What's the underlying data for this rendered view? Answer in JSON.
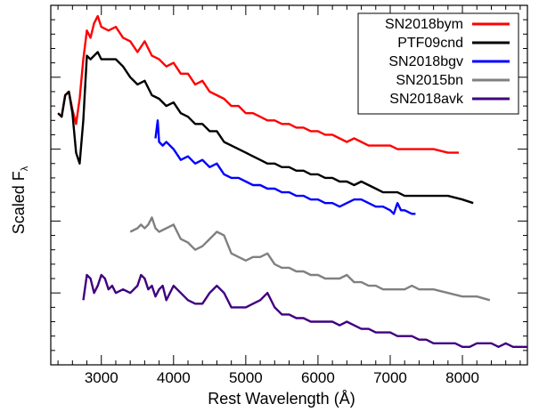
{
  "chart_data": {
    "type": "line",
    "title": "",
    "xlabel": "Rest Wavelength (Å)",
    "ylabel": "Scaled F",
    "ylabel_subscript": "λ",
    "xlim": [
      2300,
      8900
    ],
    "ylim": [
      0,
      100
    ],
    "x_ticks": [
      3000,
      4000,
      5000,
      6000,
      7000,
      8000
    ],
    "x_tick_labels": [
      "3000",
      "4000",
      "5000",
      "6000",
      "7000",
      "8000"
    ],
    "x_minor_step": 200,
    "y_major_ticks": [
      20,
      40,
      60,
      80
    ],
    "y_minor_step": 4,
    "y_tick_labels_shown": false,
    "grid": false,
    "legend_position": "top-right",
    "series": [
      {
        "name": "SN2018bym",
        "color": "#ff0000",
        "points": [
          [
            2400,
            70
          ],
          [
            2450,
            69
          ],
          [
            2500,
            75
          ],
          [
            2550,
            76
          ],
          [
            2600,
            71
          ],
          [
            2650,
            67
          ],
          [
            2700,
            74
          ],
          [
            2750,
            85
          ],
          [
            2800,
            93
          ],
          [
            2850,
            91
          ],
          [
            2900,
            95
          ],
          [
            2950,
            97
          ],
          [
            3000,
            94
          ],
          [
            3100,
            93
          ],
          [
            3200,
            94
          ],
          [
            3300,
            91
          ],
          [
            3400,
            90
          ],
          [
            3500,
            87
          ],
          [
            3600,
            90
          ],
          [
            3700,
            86
          ],
          [
            3800,
            85
          ],
          [
            3900,
            83
          ],
          [
            4000,
            84
          ],
          [
            4100,
            81
          ],
          [
            4200,
            81
          ],
          [
            4300,
            78
          ],
          [
            4400,
            79
          ],
          [
            4500,
            76
          ],
          [
            4600,
            75
          ],
          [
            4700,
            74
          ],
          [
            4800,
            72
          ],
          [
            4900,
            72
          ],
          [
            5000,
            70
          ],
          [
            5100,
            70
          ],
          [
            5200,
            69
          ],
          [
            5300,
            68
          ],
          [
            5400,
            68
          ],
          [
            5500,
            67
          ],
          [
            5600,
            67
          ],
          [
            5700,
            66
          ],
          [
            5800,
            66
          ],
          [
            5900,
            65
          ],
          [
            6000,
            65
          ],
          [
            6100,
            64
          ],
          [
            6200,
            64
          ],
          [
            6300,
            63
          ],
          [
            6400,
            62
          ],
          [
            6500,
            63
          ],
          [
            6600,
            62
          ],
          [
            6700,
            61
          ],
          [
            6800,
            61
          ],
          [
            6900,
            61
          ],
          [
            7000,
            61
          ],
          [
            7100,
            60
          ],
          [
            7200,
            60
          ],
          [
            7400,
            60
          ],
          [
            7600,
            60
          ],
          [
            7800,
            59
          ],
          [
            7950,
            59
          ]
        ]
      },
      {
        "name": "PTF09cnd",
        "color": "#000000",
        "points": [
          [
            2400,
            70
          ],
          [
            2450,
            69
          ],
          [
            2500,
            75
          ],
          [
            2550,
            76
          ],
          [
            2600,
            70
          ],
          [
            2650,
            59
          ],
          [
            2700,
            56
          ],
          [
            2750,
            68
          ],
          [
            2800,
            86
          ],
          [
            2850,
            85
          ],
          [
            2900,
            86
          ],
          [
            2950,
            87
          ],
          [
            3000,
            85
          ],
          [
            3100,
            85
          ],
          [
            3200,
            85
          ],
          [
            3300,
            83
          ],
          [
            3400,
            80
          ],
          [
            3500,
            78
          ],
          [
            3600,
            79
          ],
          [
            3700,
            75
          ],
          [
            3800,
            74
          ],
          [
            3900,
            72
          ],
          [
            4000,
            73
          ],
          [
            4100,
            70
          ],
          [
            4200,
            69
          ],
          [
            4300,
            67
          ],
          [
            4400,
            67
          ],
          [
            4500,
            65
          ],
          [
            4600,
            65
          ],
          [
            4700,
            62
          ],
          [
            4800,
            61
          ],
          [
            4900,
            60
          ],
          [
            5000,
            59
          ],
          [
            5100,
            58
          ],
          [
            5200,
            57
          ],
          [
            5300,
            56
          ],
          [
            5400,
            56
          ],
          [
            5500,
            55
          ],
          [
            5600,
            55
          ],
          [
            5700,
            54
          ],
          [
            5800,
            54
          ],
          [
            5900,
            53
          ],
          [
            6000,
            53
          ],
          [
            6100,
            52
          ],
          [
            6200,
            52
          ],
          [
            6300,
            51
          ],
          [
            6400,
            51
          ],
          [
            6500,
            50
          ],
          [
            6600,
            51
          ],
          [
            6700,
            50
          ],
          [
            6800,
            49
          ],
          [
            6900,
            48
          ],
          [
            7000,
            48
          ],
          [
            7100,
            48
          ],
          [
            7200,
            47
          ],
          [
            7400,
            47
          ],
          [
            7600,
            47
          ],
          [
            7800,
            47
          ],
          [
            8000,
            46
          ],
          [
            8150,
            45
          ]
        ]
      },
      {
        "name": "SN2018bgv",
        "color": "#0000ff",
        "points": [
          [
            3750,
            63
          ],
          [
            3780,
            68
          ],
          [
            3800,
            62
          ],
          [
            3850,
            61
          ],
          [
            3900,
            62
          ],
          [
            4000,
            60
          ],
          [
            4100,
            57
          ],
          [
            4200,
            58
          ],
          [
            4300,
            56
          ],
          [
            4400,
            57
          ],
          [
            4500,
            55
          ],
          [
            4600,
            56
          ],
          [
            4700,
            53
          ],
          [
            4800,
            52
          ],
          [
            4900,
            52
          ],
          [
            5000,
            51
          ],
          [
            5100,
            50
          ],
          [
            5200,
            50
          ],
          [
            5300,
            49
          ],
          [
            5400,
            49
          ],
          [
            5500,
            48
          ],
          [
            5600,
            48
          ],
          [
            5700,
            47
          ],
          [
            5800,
            47
          ],
          [
            5900,
            46
          ],
          [
            6000,
            46
          ],
          [
            6100,
            45
          ],
          [
            6200,
            45
          ],
          [
            6300,
            44
          ],
          [
            6400,
            45
          ],
          [
            6500,
            46
          ],
          [
            6600,
            46
          ],
          [
            6700,
            45
          ],
          [
            6800,
            44
          ],
          [
            6900,
            44
          ],
          [
            7000,
            43
          ],
          [
            7050,
            42
          ],
          [
            7100,
            45
          ],
          [
            7150,
            43
          ],
          [
            7200,
            43
          ],
          [
            7300,
            42
          ],
          [
            7350,
            42
          ]
        ]
      },
      {
        "name": "SN2015bn",
        "color": "#808080",
        "points": [
          [
            3400,
            37
          ],
          [
            3500,
            38
          ],
          [
            3550,
            39
          ],
          [
            3600,
            38
          ],
          [
            3650,
            39
          ],
          [
            3700,
            41
          ],
          [
            3750,
            38
          ],
          [
            3800,
            37
          ],
          [
            3900,
            38
          ],
          [
            4000,
            39
          ],
          [
            4100,
            35
          ],
          [
            4200,
            34
          ],
          [
            4300,
            32
          ],
          [
            4400,
            33
          ],
          [
            4500,
            35
          ],
          [
            4600,
            37
          ],
          [
            4700,
            36
          ],
          [
            4800,
            31
          ],
          [
            4900,
            30
          ],
          [
            5000,
            29
          ],
          [
            5100,
            30
          ],
          [
            5200,
            30
          ],
          [
            5300,
            31
          ],
          [
            5400,
            28
          ],
          [
            5500,
            27
          ],
          [
            5600,
            27
          ],
          [
            5700,
            26
          ],
          [
            5800,
            26
          ],
          [
            5900,
            25
          ],
          [
            6000,
            25
          ],
          [
            6100,
            24
          ],
          [
            6200,
            24
          ],
          [
            6300,
            24
          ],
          [
            6400,
            25
          ],
          [
            6500,
            23
          ],
          [
            6600,
            23
          ],
          [
            6700,
            22
          ],
          [
            6800,
            22
          ],
          [
            6900,
            21
          ],
          [
            7000,
            21
          ],
          [
            7100,
            21
          ],
          [
            7200,
            21
          ],
          [
            7300,
            22
          ],
          [
            7400,
            21
          ],
          [
            7600,
            21
          ],
          [
            7800,
            20
          ],
          [
            8000,
            19
          ],
          [
            8200,
            19
          ],
          [
            8380,
            18
          ]
        ]
      },
      {
        "name": "SN2018avk",
        "color": "#400080",
        "points": [
          [
            2750,
            18
          ],
          [
            2800,
            25
          ],
          [
            2850,
            24
          ],
          [
            2900,
            20
          ],
          [
            2950,
            22
          ],
          [
            3000,
            25
          ],
          [
            3050,
            24
          ],
          [
            3100,
            21
          ],
          [
            3150,
            22
          ],
          [
            3200,
            20
          ],
          [
            3300,
            21
          ],
          [
            3400,
            20
          ],
          [
            3500,
            22
          ],
          [
            3550,
            25
          ],
          [
            3600,
            24
          ],
          [
            3650,
            21
          ],
          [
            3700,
            22
          ],
          [
            3750,
            19
          ],
          [
            3800,
            21
          ],
          [
            3850,
            22
          ],
          [
            3900,
            18
          ],
          [
            4000,
            22
          ],
          [
            4100,
            20
          ],
          [
            4200,
            18
          ],
          [
            4300,
            17
          ],
          [
            4400,
            17
          ],
          [
            4500,
            20
          ],
          [
            4600,
            22
          ],
          [
            4700,
            20
          ],
          [
            4800,
            16
          ],
          [
            4900,
            16
          ],
          [
            5000,
            16
          ],
          [
            5100,
            17
          ],
          [
            5200,
            18
          ],
          [
            5300,
            20
          ],
          [
            5400,
            16
          ],
          [
            5500,
            14
          ],
          [
            5600,
            14
          ],
          [
            5700,
            13
          ],
          [
            5800,
            13
          ],
          [
            5900,
            12
          ],
          [
            6000,
            12
          ],
          [
            6100,
            12
          ],
          [
            6200,
            12
          ],
          [
            6300,
            11
          ],
          [
            6400,
            12
          ],
          [
            6500,
            11
          ],
          [
            6600,
            10
          ],
          [
            6700,
            10
          ],
          [
            6800,
            9
          ],
          [
            6900,
            9
          ],
          [
            7000,
            9
          ],
          [
            7100,
            8
          ],
          [
            7200,
            8
          ],
          [
            7300,
            8
          ],
          [
            7400,
            7
          ],
          [
            7500,
            7
          ],
          [
            7600,
            6
          ],
          [
            7700,
            6
          ],
          [
            7800,
            6
          ],
          [
            7900,
            6
          ],
          [
            8000,
            5
          ],
          [
            8100,
            5
          ],
          [
            8200,
            6
          ],
          [
            8300,
            6
          ],
          [
            8400,
            6
          ],
          [
            8500,
            5
          ],
          [
            8600,
            6
          ],
          [
            8700,
            5
          ],
          [
            8800,
            5
          ],
          [
            8900,
            5
          ]
        ]
      }
    ]
  }
}
